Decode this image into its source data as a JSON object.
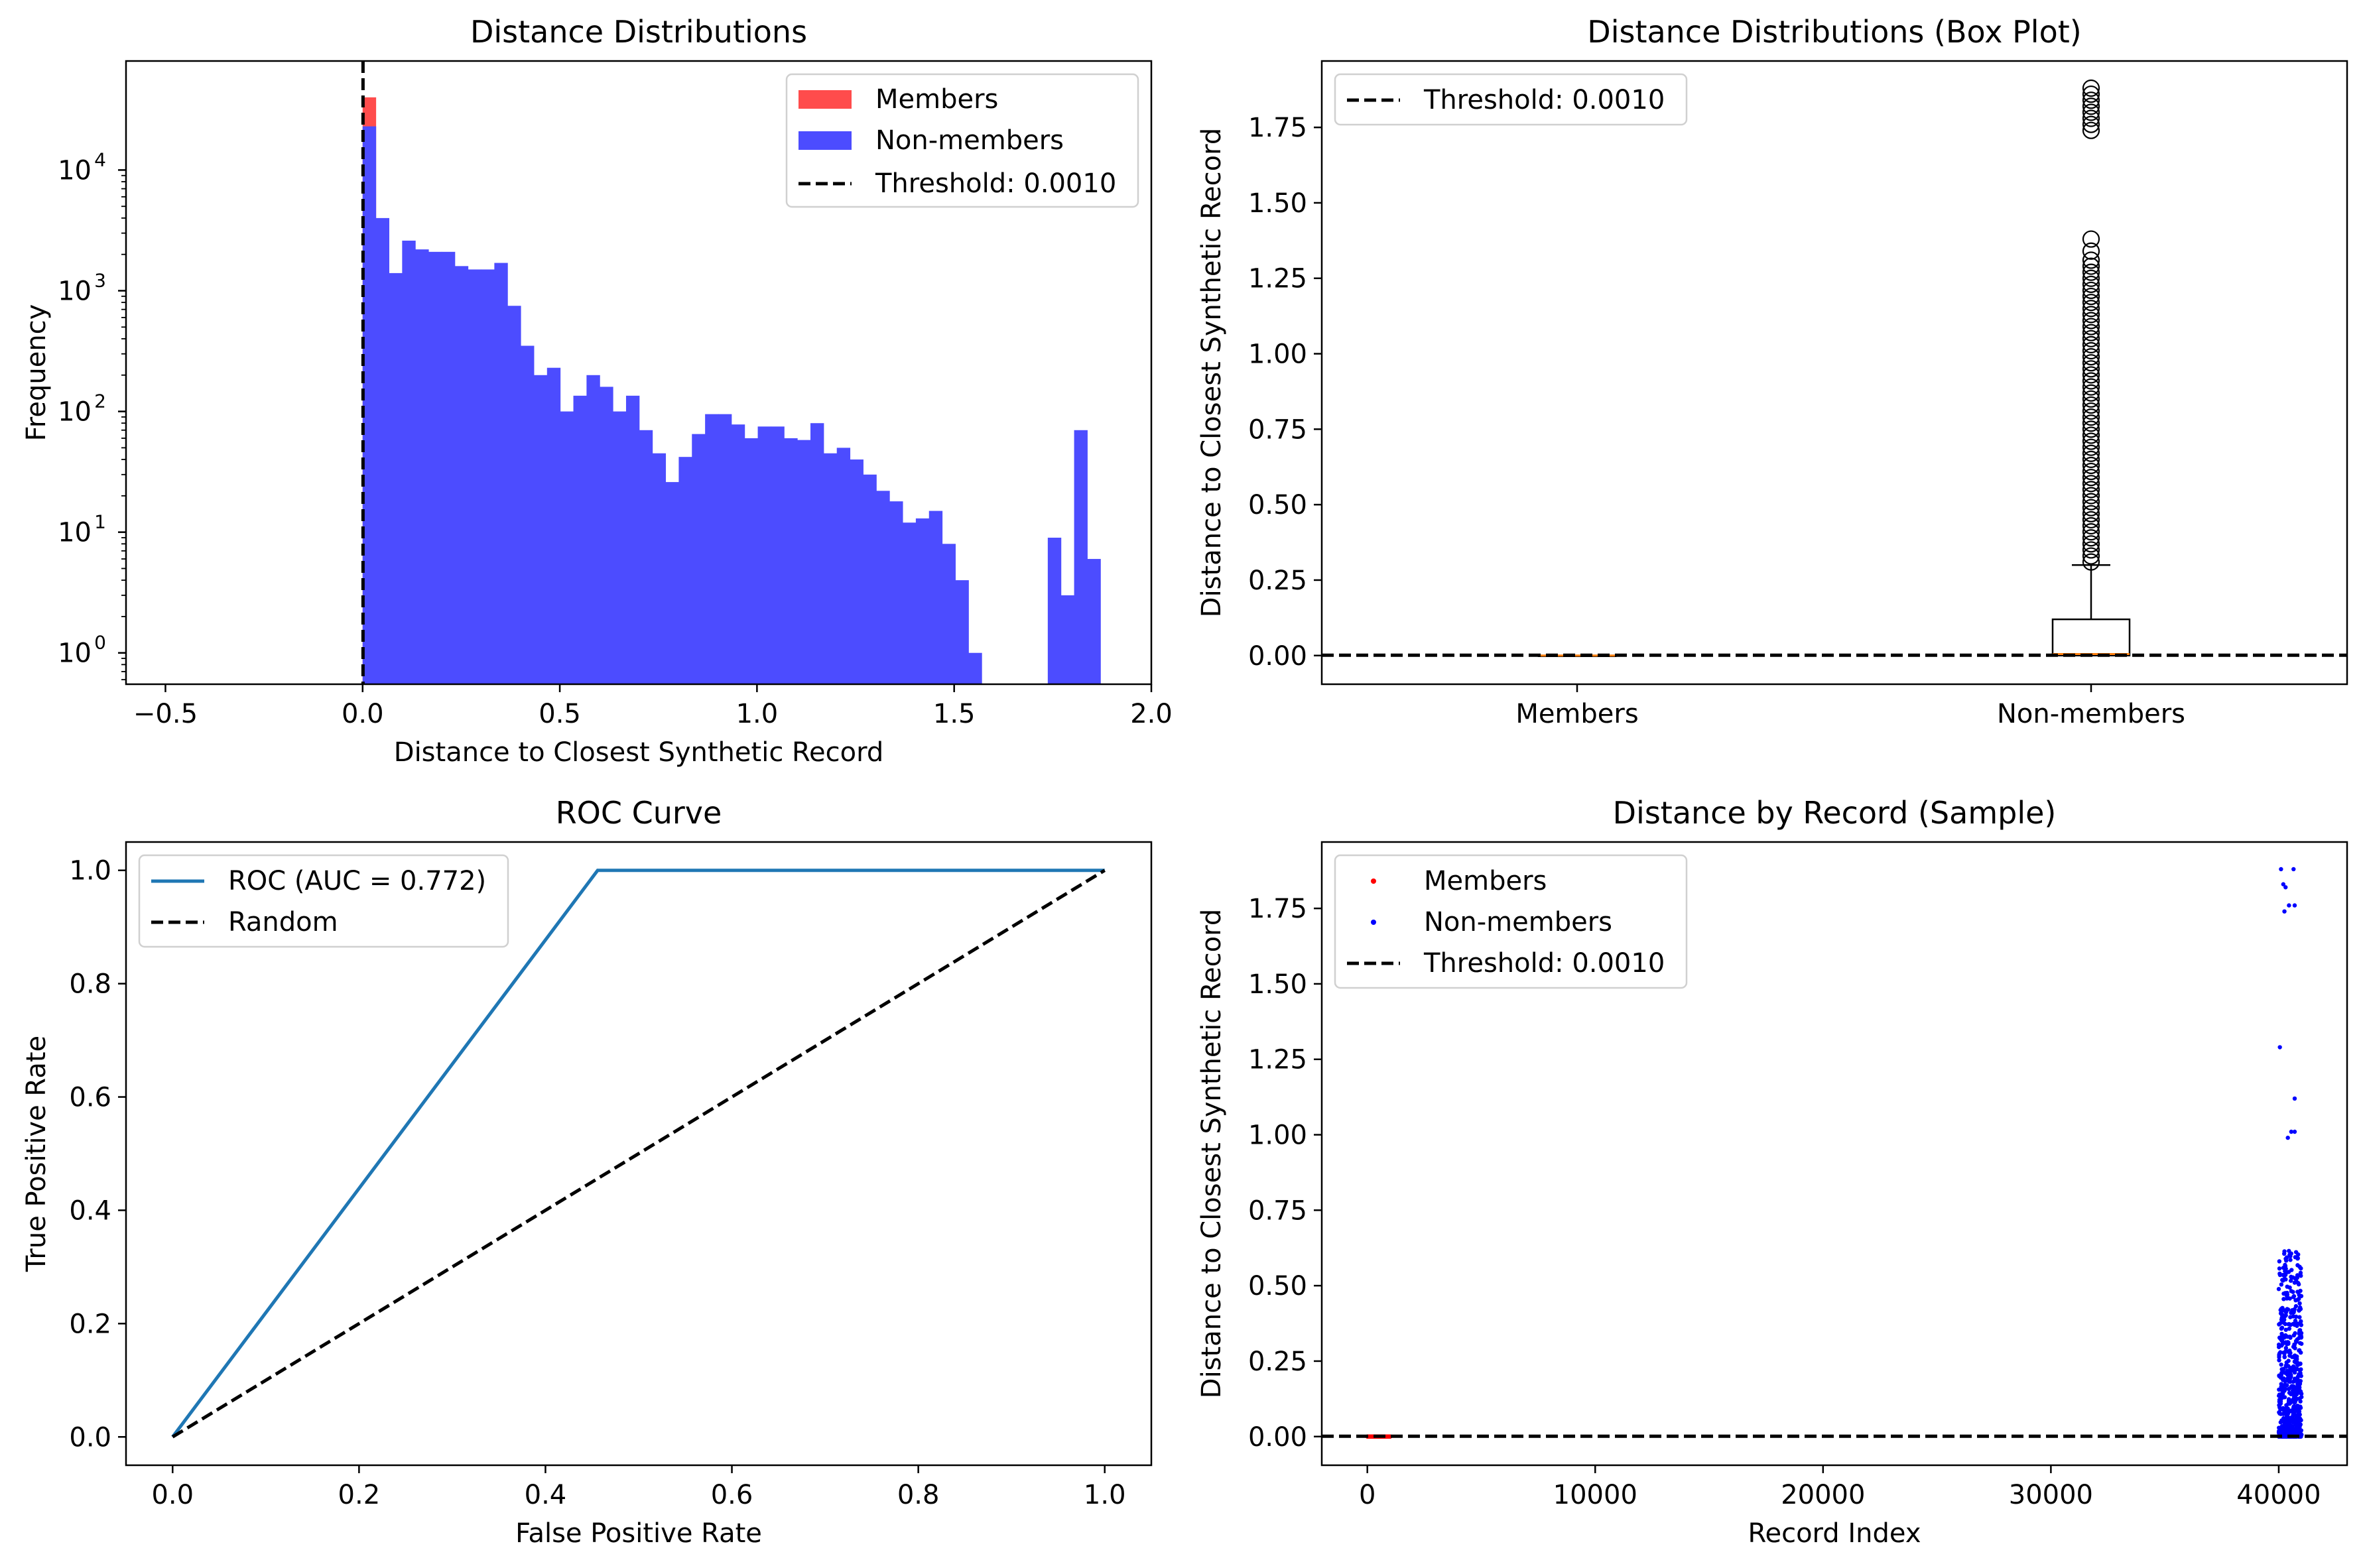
{
  "chart_data": [
    {
      "type": "histogram",
      "title": "Distance Distributions",
      "xlabel": "Distance to Closest Synthetic Record",
      "ylabel": "Frequency",
      "xlim": [
        -0.6,
        2.0
      ],
      "yscale": "log",
      "ylim": [
        0.55,
        80000
      ],
      "xticks": [
        -0.5,
        0.0,
        0.5,
        1.0,
        1.5,
        2.0
      ],
      "xtick_labels": [
        "−0.5",
        "0.0",
        "0.5",
        "1.0",
        "1.5",
        "2.0"
      ],
      "yticks": [
        1,
        10,
        100,
        1000,
        10000
      ],
      "ytick_labels": [
        "10",
        "10",
        "10",
        "10",
        "10"
      ],
      "ytick_exponents": [
        "0",
        "1",
        "2",
        "3",
        "4"
      ],
      "bin_width": 0.0334,
      "series": [
        {
          "name": "Members",
          "color": "#ff4c4c",
          "bins": [
            {
              "x": 0.0,
              "count": 40000
            }
          ]
        },
        {
          "name": "Non-members",
          "color": "#4c4cff",
          "bins": [
            {
              "x": 0.0,
              "count": 23000
            },
            {
              "x": 0.0334,
              "count": 4000
            },
            {
              "x": 0.0668,
              "count": 1400
            },
            {
              "x": 0.1002,
              "count": 2600
            },
            {
              "x": 0.1336,
              "count": 2200
            },
            {
              "x": 0.167,
              "count": 2100
            },
            {
              "x": 0.2004,
              "count": 2100
            },
            {
              "x": 0.2338,
              "count": 1600
            },
            {
              "x": 0.2672,
              "count": 1500
            },
            {
              "x": 0.3006,
              "count": 1500
            },
            {
              "x": 0.334,
              "count": 1700
            },
            {
              "x": 0.3674,
              "count": 750
            },
            {
              "x": 0.4008,
              "count": 350
            },
            {
              "x": 0.4342,
              "count": 200
            },
            {
              "x": 0.4676,
              "count": 230
            },
            {
              "x": 0.501,
              "count": 100
            },
            {
              "x": 0.5344,
              "count": 135
            },
            {
              "x": 0.5678,
              "count": 200
            },
            {
              "x": 0.6012,
              "count": 160
            },
            {
              "x": 0.6346,
              "count": 100
            },
            {
              "x": 0.668,
              "count": 135
            },
            {
              "x": 0.7014,
              "count": 70
            },
            {
              "x": 0.7348,
              "count": 45
            },
            {
              "x": 0.7682,
              "count": 26
            },
            {
              "x": 0.8016,
              "count": 42
            },
            {
              "x": 0.835,
              "count": 65
            },
            {
              "x": 0.8684,
              "count": 95
            },
            {
              "x": 0.9018,
              "count": 95
            },
            {
              "x": 0.9352,
              "count": 78
            },
            {
              "x": 0.9686,
              "count": 60
            },
            {
              "x": 1.002,
              "count": 75
            },
            {
              "x": 1.0354,
              "count": 75
            },
            {
              "x": 1.0688,
              "count": 60
            },
            {
              "x": 1.1022,
              "count": 58
            },
            {
              "x": 1.1356,
              "count": 80
            },
            {
              "x": 1.169,
              "count": 45
            },
            {
              "x": 1.2024,
              "count": 50
            },
            {
              "x": 1.2358,
              "count": 40
            },
            {
              "x": 1.2692,
              "count": 30
            },
            {
              "x": 1.3026,
              "count": 22
            },
            {
              "x": 1.336,
              "count": 18
            },
            {
              "x": 1.3694,
              "count": 12
            },
            {
              "x": 1.4028,
              "count": 13
            },
            {
              "x": 1.4362,
              "count": 15
            },
            {
              "x": 1.4696,
              "count": 8
            },
            {
              "x": 1.503,
              "count": 4
            },
            {
              "x": 1.5364,
              "count": 1
            },
            {
              "x": 1.7374,
              "count": 9
            },
            {
              "x": 1.7708,
              "count": 3
            },
            {
              "x": 1.8042,
              "count": 70
            },
            {
              "x": 1.8376,
              "count": 6
            }
          ]
        }
      ],
      "threshold": {
        "value": 0.001,
        "label": "Threshold: 0.0010"
      },
      "legend": {
        "position": "upper-right",
        "entries": [
          "Members",
          "Non-members",
          "Threshold: 0.0010"
        ]
      }
    },
    {
      "type": "box",
      "title": "Distance Distributions (Box Plot)",
      "xlabel": "",
      "ylabel": "Distance to Closest Synthetic Record",
      "categories": [
        "Members",
        "Non-members"
      ],
      "ylim": [
        -0.095,
        1.97
      ],
      "yticks": [
        0.0,
        0.25,
        0.5,
        0.75,
        1.0,
        1.25,
        1.5,
        1.75
      ],
      "ytick_labels": [
        "0.00",
        "0.25",
        "0.50",
        "0.75",
        "1.00",
        "1.25",
        "1.50",
        "1.75"
      ],
      "boxes": [
        {
          "name": "Members",
          "q1": 0.0,
          "median": 0.0,
          "q3": 0.0,
          "whisker_low": 0.0,
          "whisker_high": 0.0,
          "outliers": []
        },
        {
          "name": "Non-members",
          "q1": 0.0,
          "median": 0.005,
          "q3": 0.12,
          "whisker_low": 0.0,
          "whisker_high": 0.3,
          "outliers": [
            0.31,
            0.33,
            0.35,
            0.37,
            0.39,
            0.41,
            0.43,
            0.45,
            0.47,
            0.49,
            0.51,
            0.53,
            0.55,
            0.57,
            0.59,
            0.61,
            0.63,
            0.65,
            0.67,
            0.69,
            0.71,
            0.73,
            0.75,
            0.77,
            0.79,
            0.81,
            0.83,
            0.85,
            0.87,
            0.89,
            0.91,
            0.93,
            0.95,
            0.97,
            0.99,
            1.01,
            1.03,
            1.05,
            1.07,
            1.09,
            1.11,
            1.13,
            1.15,
            1.17,
            1.19,
            1.21,
            1.23,
            1.25,
            1.27,
            1.29,
            1.31,
            1.34,
            1.38,
            1.74,
            1.76,
            1.78,
            1.8,
            1.82,
            1.84,
            1.86,
            1.88
          ]
        }
      ],
      "threshold": {
        "value": 0.001,
        "label": "Threshold: 0.0010"
      },
      "legend": {
        "position": "upper-left",
        "entries": [
          "Threshold: 0.0010"
        ]
      }
    },
    {
      "type": "line",
      "title": "ROC Curve",
      "xlabel": "False Positive Rate",
      "ylabel": "True Positive Rate",
      "xlim": [
        -0.05,
        1.05
      ],
      "ylim": [
        -0.05,
        1.05
      ],
      "xticks": [
        0.0,
        0.2,
        0.4,
        0.6,
        0.8,
        1.0
      ],
      "xtick_labels": [
        "0.0",
        "0.2",
        "0.4",
        "0.6",
        "0.8",
        "1.0"
      ],
      "yticks": [
        0.0,
        0.2,
        0.4,
        0.6,
        0.8,
        1.0
      ],
      "ytick_labels": [
        "0.0",
        "0.2",
        "0.4",
        "0.6",
        "0.8",
        "1.0"
      ],
      "series": [
        {
          "name": "ROC (AUC = 0.772)",
          "color": "#1f77b4",
          "style": "solid",
          "x": [
            0.0,
            0.456,
            1.0
          ],
          "y": [
            0.0,
            1.0,
            1.0
          ]
        },
        {
          "name": "Random",
          "color": "#000000",
          "style": "dashed",
          "x": [
            0.0,
            1.0
          ],
          "y": [
            0.0,
            1.0
          ]
        }
      ],
      "legend": {
        "position": "upper-left",
        "entries": [
          "ROC (AUC = 0.772)",
          "Random"
        ]
      }
    },
    {
      "type": "scatter",
      "title": "Distance by Record (Sample)",
      "xlabel": "Record Index",
      "ylabel": "Distance to Closest Synthetic Record",
      "xlim": [
        -2000,
        43000
      ],
      "ylim": [
        -0.095,
        1.97
      ],
      "xticks": [
        0,
        10000,
        20000,
        30000,
        40000
      ],
      "xtick_labels": [
        "0",
        "10000",
        "20000",
        "30000",
        "40000"
      ],
      "yticks": [
        0.0,
        0.25,
        0.5,
        0.75,
        1.0,
        1.25,
        1.5,
        1.75
      ],
      "ytick_labels": [
        "0.00",
        "0.25",
        "0.50",
        "0.75",
        "1.00",
        "1.25",
        "1.50",
        "1.75"
      ],
      "series": [
        {
          "name": "Members",
          "color": "#ff0000",
          "x_range": [
            0,
            1000
          ],
          "y": 0.0,
          "count": 120
        },
        {
          "name": "Non-members",
          "color": "#0000ff",
          "x_range": [
            40000,
            41000
          ],
          "outlier_points": [
            [
              40100,
              1.88
            ],
            [
              40650,
              1.88
            ],
            [
              40200,
              1.83
            ],
            [
              40300,
              1.82
            ],
            [
              40450,
              1.76
            ],
            [
              40700,
              1.76
            ],
            [
              40250,
              1.74
            ],
            [
              40050,
              1.29
            ],
            [
              40700,
              1.12
            ],
            [
              40550,
              1.01
            ],
            [
              40700,
              1.01
            ],
            [
              40400,
              0.99
            ]
          ]
        },
        {
          "name": "Threshold: 0.0010",
          "color": "#000000",
          "style": "dashed",
          "y": 0.001
        }
      ],
      "legend": {
        "position": "upper-left",
        "entries": [
          "Members",
          "Non-members",
          "Threshold: 0.0010"
        ]
      }
    }
  ]
}
